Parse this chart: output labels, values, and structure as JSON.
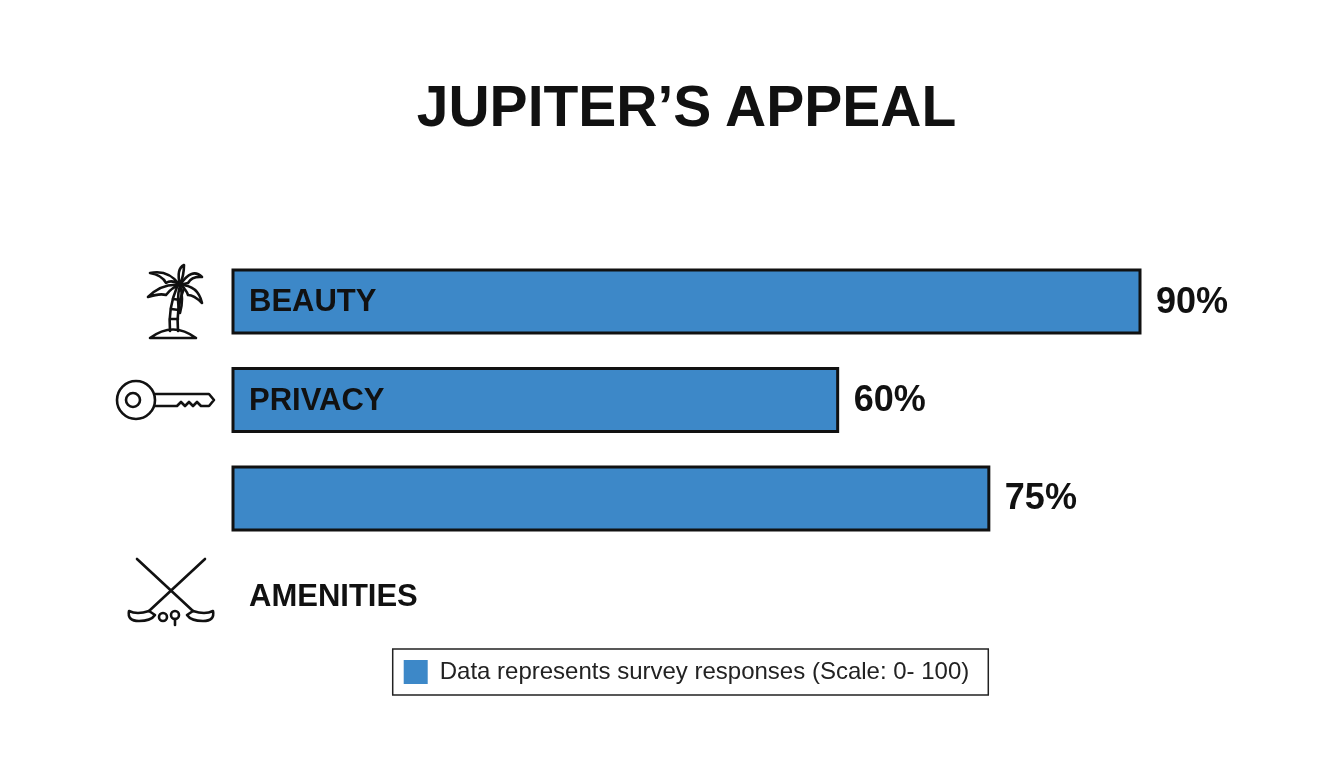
{
  "chart_data": {
    "type": "bar",
    "orientation": "horizontal",
    "title": "JUPITER’S APPEAL",
    "categories": [
      "BEAUTY",
      "PRIVACY",
      null,
      "AMENITIES"
    ],
    "series": [
      {
        "name": "Data represents survey responses (Scale: 0- 100)",
        "color": "#3d88c8",
        "values": [
          90,
          60,
          75,
          null
        ],
        "value_labels": [
          "90%",
          "60%",
          "75%",
          null
        ]
      }
    ],
    "legend": "bottom",
    "tick_labels": "y"
  }
}
